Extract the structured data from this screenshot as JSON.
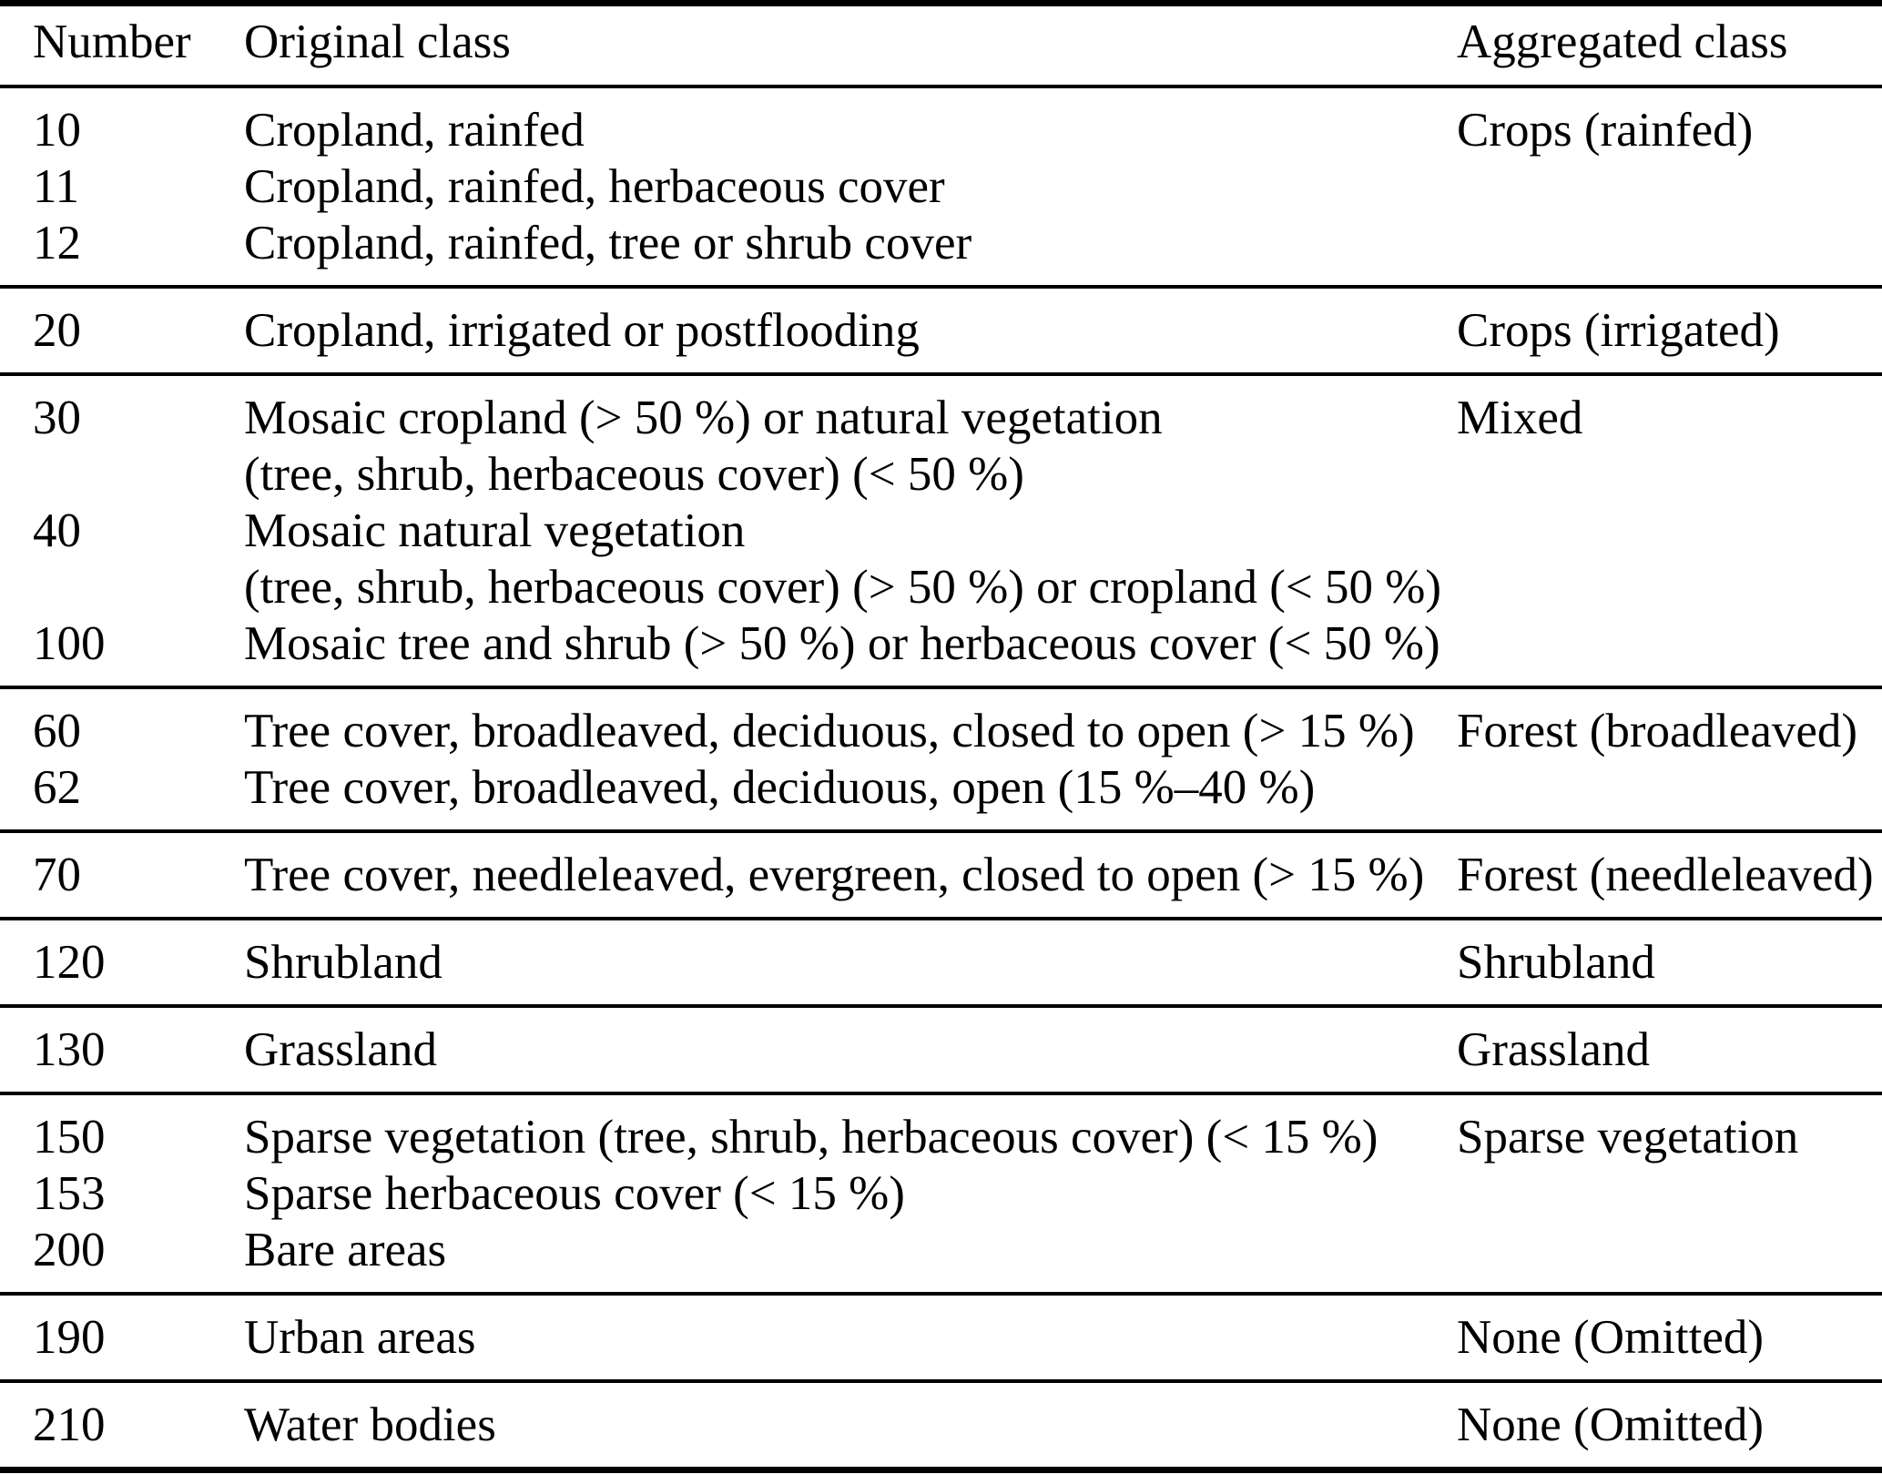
{
  "table": {
    "columns": [
      "Number",
      "Original class",
      "Aggregated class"
    ],
    "groups": [
      {
        "aggregated": "Crops (rainfed)",
        "rows": [
          {
            "number": "10",
            "lines": [
              "Cropland, rainfed"
            ]
          },
          {
            "number": "11",
            "lines": [
              "Cropland, rainfed, herbaceous cover"
            ]
          },
          {
            "number": "12",
            "lines": [
              "Cropland, rainfed, tree or shrub cover"
            ]
          }
        ]
      },
      {
        "aggregated": "Crops (irrigated)",
        "rows": [
          {
            "number": "20",
            "lines": [
              "Cropland, irrigated or postflooding"
            ]
          }
        ]
      },
      {
        "aggregated": "Mixed",
        "rows": [
          {
            "number": "30",
            "lines": [
              "Mosaic cropland (> 50 %) or natural vegetation",
              "(tree, shrub, herbaceous cover) (< 50 %)"
            ]
          },
          {
            "number": "40",
            "lines": [
              "Mosaic natural vegetation",
              "(tree, shrub, herbaceous cover) (> 50 %) or cropland (< 50 %)"
            ]
          },
          {
            "number": "100",
            "lines": [
              "Mosaic tree and shrub (> 50 %) or herbaceous cover (< 50 %)"
            ]
          }
        ]
      },
      {
        "aggregated": "Forest (broadleaved)",
        "rows": [
          {
            "number": "60",
            "lines": [
              "Tree cover, broadleaved, deciduous, closed to open (> 15 %)"
            ]
          },
          {
            "number": "62",
            "lines": [
              "Tree cover, broadleaved, deciduous, open (15 %–40 %)"
            ]
          }
        ]
      },
      {
        "aggregated": "Forest (needleleaved)",
        "rows": [
          {
            "number": "70",
            "lines": [
              "Tree cover, needleleaved, evergreen, closed to open (> 15 %)"
            ]
          }
        ]
      },
      {
        "aggregated": "Shrubland",
        "rows": [
          {
            "number": "120",
            "lines": [
              "Shrubland"
            ]
          }
        ]
      },
      {
        "aggregated": "Grassland",
        "rows": [
          {
            "number": "130",
            "lines": [
              "Grassland"
            ]
          }
        ]
      },
      {
        "aggregated": "Sparse vegetation",
        "rows": [
          {
            "number": "150",
            "lines": [
              "Sparse vegetation (tree, shrub, herbaceous cover) (< 15 %)"
            ]
          },
          {
            "number": "153",
            "lines": [
              "Sparse herbaceous cover (< 15 %)"
            ]
          },
          {
            "number": "200",
            "lines": [
              "Bare areas"
            ]
          }
        ]
      },
      {
        "aggregated": "None (Omitted)",
        "rows": [
          {
            "number": "190",
            "lines": [
              "Urban areas"
            ]
          }
        ]
      },
      {
        "aggregated": "None (Omitted)",
        "rows": [
          {
            "number": "210",
            "lines": [
              "Water bodies"
            ]
          }
        ]
      }
    ],
    "colors": {
      "text": "#000000",
      "rule": "#000000",
      "background": "#ffffff"
    }
  }
}
